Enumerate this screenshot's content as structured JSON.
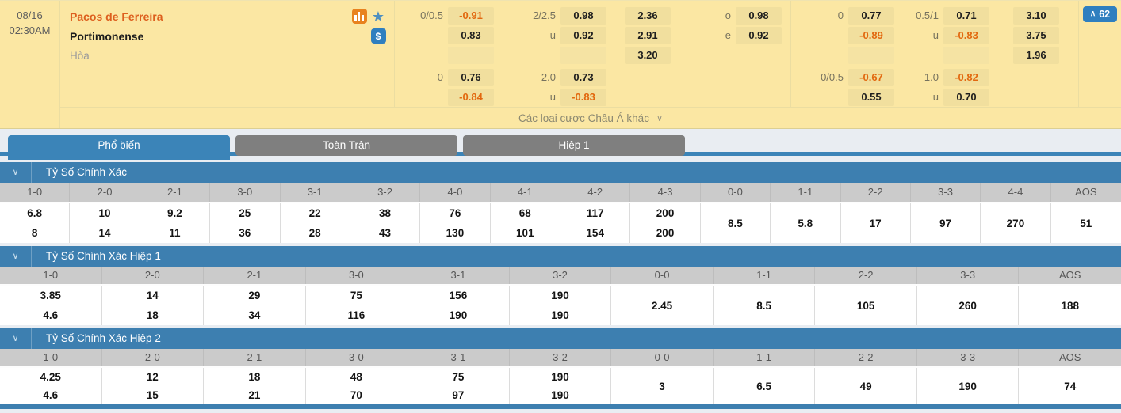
{
  "colors": {
    "card_bg": "#FBE7A3",
    "accent_blue": "#3B84B8",
    "section_blue": "#3D7FB0",
    "odds_negative": "#E2680F",
    "home_team_orange": "#DD5F1E"
  },
  "match": {
    "date": "08/16",
    "time": "02:30AM",
    "home_team": "Pacos de Ferreira",
    "away_team": "Portimonense",
    "draw_label": "Hòa",
    "cash_symbol": "$",
    "star_glyph": "★",
    "markets_button": {
      "chevron": "∧",
      "count": "62"
    },
    "more_bets": {
      "label": "Các loại cược Châu Á khác",
      "chevron": "∨"
    },
    "full_time": {
      "hdp_line1": "0/0.5",
      "hdp_home1": "-0.91",
      "hdp_away1": "0.83",
      "ou_line1": "2/2.5",
      "ou_over1": "0.98",
      "ou_under1": "0.92",
      "x12_home": "2.36",
      "x12_away": "2.91",
      "x12_draw": "3.20",
      "oe_odd_label": "o",
      "oe_odd": "0.98",
      "oe_even_label": "e",
      "oe_even": "0.92",
      "hdp_line2": "0",
      "hdp_home2": "0.76",
      "hdp_away2": "-0.84",
      "ou_line2": "2.0",
      "ou_over2": "0.73",
      "ou_under2": "-0.83",
      "u_label": "u"
    },
    "first_half": {
      "hdp_line1": "0",
      "hdp_home1": "0.77",
      "hdp_away1": "-0.89",
      "ou_line1": "0.5/1",
      "ou_over1": "0.71",
      "ou_under1": "-0.83",
      "x12_home": "3.10",
      "x12_away": "3.75",
      "x12_draw": "1.96",
      "hdp_line2": "0/0.5",
      "hdp_home2": "-0.67",
      "hdp_away2": "0.55",
      "ou_line2": "1.0",
      "ou_over2": "-0.82",
      "ou_under2": "0.70",
      "u_label": "u"
    }
  },
  "tabs": [
    {
      "label": "Phổ biến",
      "active": true
    },
    {
      "label": "Toàn Trận",
      "active": false
    },
    {
      "label": "Hiệp 1",
      "active": false
    }
  ],
  "section_chevron": "∨",
  "tables": [
    {
      "title": "Tỷ Số Chính Xác",
      "headers": [
        "1-0",
        "2-0",
        "2-1",
        "3-0",
        "3-1",
        "3-2",
        "4-0",
        "4-1",
        "4-2",
        "4-3",
        "0-0",
        "1-1",
        "2-2",
        "3-3",
        "4-4",
        "AOS"
      ],
      "pairs": [
        [
          "6.8",
          "8"
        ],
        [
          "10",
          "14"
        ],
        [
          "9.2",
          "11"
        ],
        [
          "25",
          "36"
        ],
        [
          "22",
          "28"
        ],
        [
          "38",
          "43"
        ],
        [
          "76",
          "130"
        ],
        [
          "68",
          "101"
        ],
        [
          "117",
          "154"
        ],
        [
          "200",
          "200"
        ]
      ],
      "merged": [
        "8.5",
        "5.8",
        "17",
        "97",
        "270",
        "51"
      ]
    },
    {
      "title": "Tỷ Số Chính Xác Hiệp 1",
      "headers": [
        "1-0",
        "2-0",
        "2-1",
        "3-0",
        "3-1",
        "3-2",
        "0-0",
        "1-1",
        "2-2",
        "3-3",
        "AOS"
      ],
      "pairs": [
        [
          "3.85",
          "4.6"
        ],
        [
          "14",
          "18"
        ],
        [
          "29",
          "34"
        ],
        [
          "75",
          "116"
        ],
        [
          "156",
          "190"
        ],
        [
          "190",
          "190"
        ]
      ],
      "merged": [
        "2.45",
        "8.5",
        "105",
        "260",
        "188"
      ]
    },
    {
      "title": "Tỷ Số Chính Xác Hiệp 2",
      "headers": [
        "1-0",
        "2-0",
        "2-1",
        "3-0",
        "3-1",
        "3-2",
        "0-0",
        "1-1",
        "2-2",
        "3-3",
        "AOS"
      ],
      "pairs": [
        [
          "4.25",
          "4.6"
        ],
        [
          "12",
          "15"
        ],
        [
          "18",
          "21"
        ],
        [
          "48",
          "70"
        ],
        [
          "75",
          "97"
        ],
        [
          "190",
          "190"
        ]
      ],
      "merged": [
        "3",
        "6.5",
        "49",
        "190",
        "74"
      ]
    }
  ]
}
